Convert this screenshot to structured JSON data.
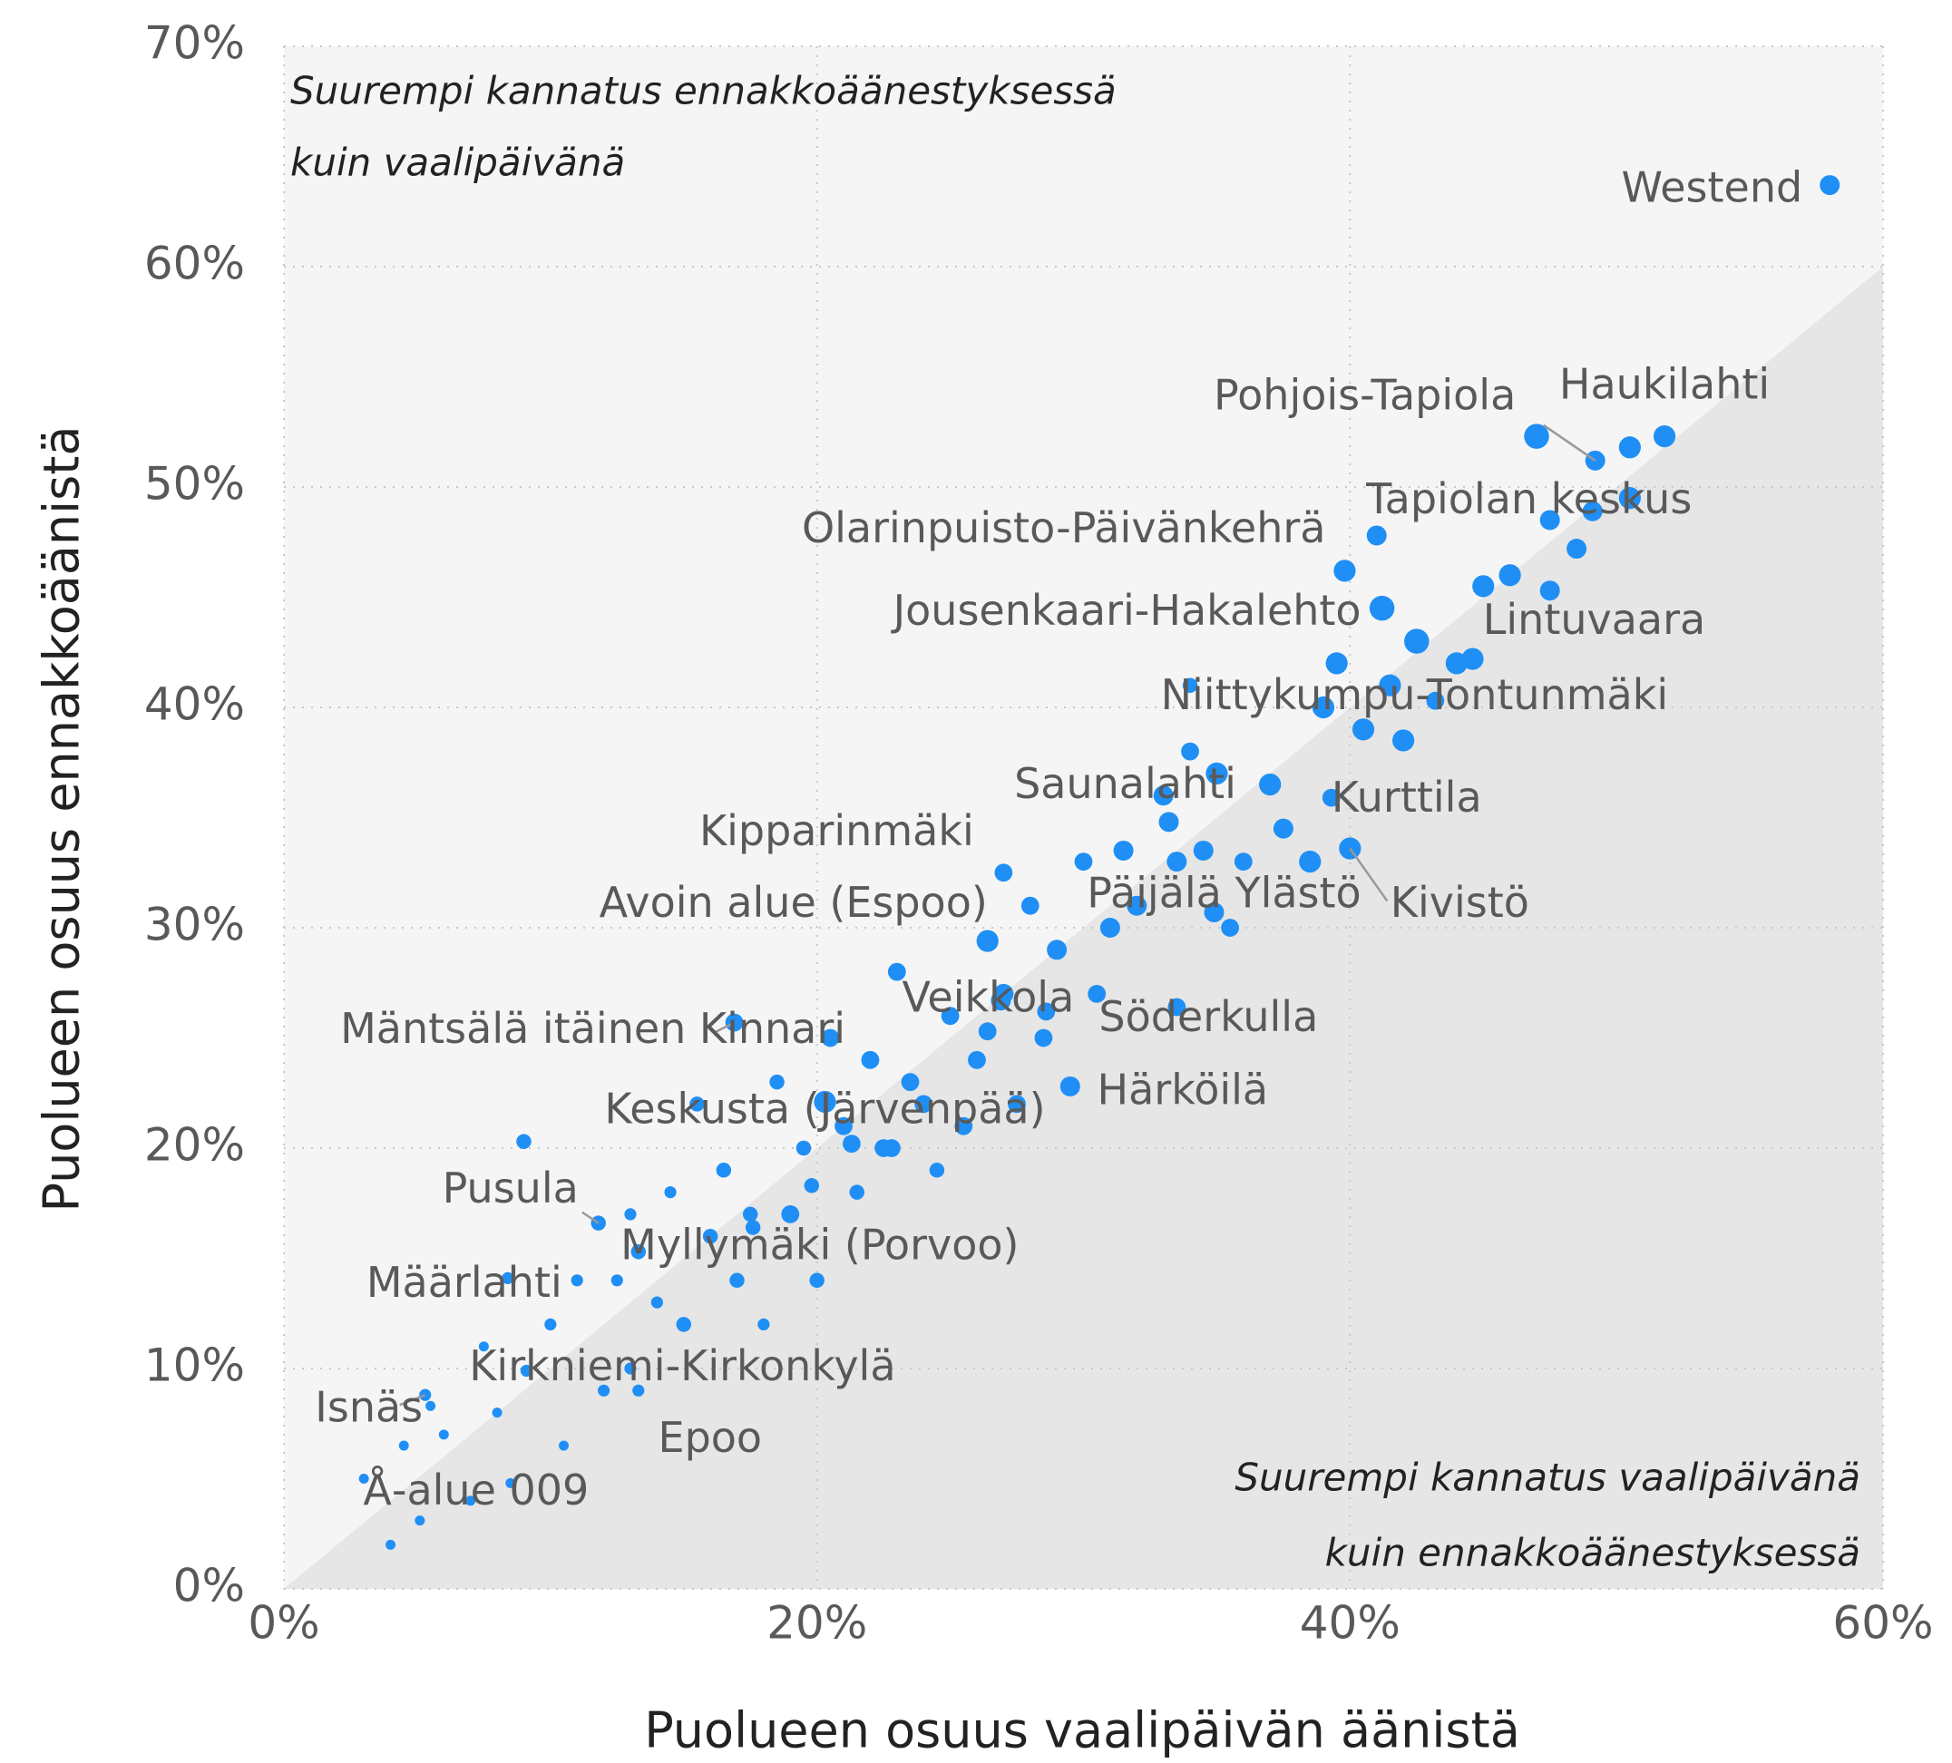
{
  "chart_data": {
    "type": "scatter",
    "x_label": "Puolueen osuus vaalipäivän äänistä",
    "y_label": "Puolueen osuus ennakkoäänistä",
    "annotations": [
      [
        "Suurempi kannatus ennakkoäänestyksessä",
        "kuin vaalipäivänä"
      ],
      [
        "Suurempi kannatus vaalipäivänä",
        "kuin ennakkoäänestyksessä"
      ]
    ],
    "color": "#1f8ff5",
    "xlim": [
      0,
      60
    ],
    "ylim": [
      0,
      70
    ],
    "xticks": [
      {
        "value": 0,
        "label": "0%"
      },
      {
        "value": 20,
        "label": "20%"
      },
      {
        "value": 40,
        "label": "40%"
      },
      {
        "value": 60,
        "label": "60%"
      }
    ],
    "yticks": [
      {
        "value": 0,
        "label": "0%"
      },
      {
        "value": 10,
        "label": "10%"
      },
      {
        "value": 20,
        "label": "20%"
      },
      {
        "value": 30,
        "label": "30%"
      },
      {
        "value": 40,
        "label": "40%"
      },
      {
        "value": 50,
        "label": "50%"
      },
      {
        "value": 60,
        "label": "60%"
      },
      {
        "value": 70,
        "label": "70%"
      }
    ],
    "grid": true,
    "x": [
      58.0,
      51.8,
      49.2,
      49.1,
      39.8,
      41.2,
      44.6,
      43.2,
      39.3,
      40.0,
      33.2,
      27.0,
      26.4,
      34.9,
      26.9,
      33.5,
      16.9,
      29.5,
      20.3,
      11.8,
      13.3,
      8.4,
      9.1,
      5.3,
      13.3,
      5.1,
      3,
      4,
      4.5,
      6,
      7,
      7.5,
      8,
      9,
      10,
      10.5,
      11,
      12,
      12.5,
      13,
      14,
      14.5,
      15,
      15.5,
      16,
      16.5,
      17,
      17.5,
      18,
      18.5,
      19,
      19.5,
      20,
      20.5,
      21,
      21.5,
      22,
      22.5,
      23,
      23.5,
      24,
      24.5,
      25,
      25.5,
      26,
      27,
      27.5,
      28,
      28.5,
      29,
      30,
      30.5,
      31,
      31.5,
      32,
      33,
      33.5,
      34,
      34.5,
      35,
      35.5,
      36,
      37,
      37.5,
      38.5,
      39,
      39.5,
      40.5,
      41.5,
      42,
      42.5,
      44,
      45,
      46,
      47,
      47.5,
      47.5,
      48.5,
      50.5,
      50.5,
      41,
      34,
      17.6,
      19.8,
      21.3,
      22.8,
      26.4,
      28.6,
      13,
      8.5,
      5.5
    ],
    "y": [
      63.7,
      52.3,
      51.2,
      48.9,
      46.2,
      44.5,
      42.2,
      40.3,
      35.9,
      33.6,
      34.8,
      32.5,
      29.4,
      30.7,
      26.7,
      26.4,
      25.7,
      22.8,
      22.1,
      16.6,
      15.3,
      14.1,
      9.9,
      8.8,
      9.0,
      3.1,
      5,
      2,
      6.5,
      7,
      4,
      11,
      8,
      20.3,
      12,
      6.5,
      14,
      9,
      14,
      17,
      13,
      18,
      12,
      22,
      16,
      19,
      14,
      17,
      12,
      23,
      17,
      20,
      14,
      25,
      21,
      18,
      24,
      20,
      28,
      23,
      22,
      19,
      26,
      21,
      24,
      27,
      22,
      31,
      25,
      29,
      33,
      27,
      30,
      33.5,
      31,
      36,
      33,
      38,
      33.5,
      37,
      30,
      33,
      36.5,
      34.5,
      33,
      40,
      42,
      39,
      41,
      38.5,
      43,
      42,
      45.5,
      46,
      52.3,
      48.5,
      45.3,
      47.2,
      51.8,
      49.5,
      47.8,
      41,
      16.4,
      18.3,
      20.2,
      20,
      25.3,
      26.2,
      10,
      4.8,
      8.3
    ],
    "sizes": [
      2,
      2.2,
      2,
      2,
      2.2,
      2.5,
      2.2,
      1.8,
      1.8,
      2.2,
      2,
      1.8,
      2.2,
      2,
      2,
      1.8,
      1.8,
      2,
      2.2,
      1.5,
      1.5,
      1.2,
      1.2,
      1.2,
      1.2,
      1,
      1,
      1,
      1,
      1,
      1,
      1,
      1,
      1.5,
      1.2,
      1,
      1.2,
      1.2,
      1.2,
      1.2,
      1.2,
      1.2,
      1.5,
      1.5,
      1.5,
      1.5,
      1.5,
      1.5,
      1.2,
      1.5,
      1.8,
      1.5,
      1.5,
      1.8,
      1.8,
      1.5,
      1.8,
      1.8,
      1.8,
      1.8,
      1.8,
      1.5,
      1.8,
      1.8,
      1.8,
      2,
      1.8,
      1.8,
      1.8,
      2,
      1.8,
      1.8,
      2,
      2,
      2,
      2,
      2,
      1.8,
      2,
      2.2,
      1.8,
      1.8,
      2.2,
      2,
      2.2,
      2.2,
      2.2,
      2.2,
      2.2,
      2.2,
      2.5,
      2.2,
      2.2,
      2.2,
      2.5,
      2,
      2,
      2,
      2.2,
      2.2,
      2,
      1.5,
      1.5,
      1.5,
      1.8,
      1.8,
      1.8,
      1.8,
      1.2,
      1,
      1
    ],
    "labels": [
      "Westend",
      "Haukilahti",
      "Pohjois-Tapiola",
      "Tapiolan keskus",
      "Olarinpuisto-Päivänkehrä",
      "Jousenkaari-Hakalehto",
      "Lintuvaara",
      "Niittykumpu-Tontunmäki",
      "Kurttila",
      "Kivistö",
      "Saunalahti",
      "Kipparinmäki",
      "Avoin alue (Espoo)",
      "Päijälä Ylästö",
      "Veikkola",
      "Söderkulla",
      "Mäntsälä itäinen Kinnari",
      "Härköilä",
      "Keskusta (Järvenpää)",
      "Pusula",
      "Myllymäki (Porvoo)",
      "Määrlahti",
      "Kirkniemi-Kirkonkylä",
      "Isnäs",
      "Epoo",
      "Å-alue 009",
      null,
      null,
      null,
      null,
      null,
      null,
      null,
      null,
      null,
      null,
      null,
      null,
      null,
      null,
      null,
      null,
      null,
      null,
      null,
      null,
      null,
      null,
      null,
      null,
      null,
      null,
      null,
      null,
      null,
      null,
      null,
      null,
      null,
      null,
      null,
      null,
      null,
      null,
      null,
      null,
      null,
      null,
      null,
      null,
      null,
      null,
      null,
      null,
      null,
      null,
      null,
      null,
      null,
      null,
      null,
      null,
      null,
      null,
      null,
      null,
      null,
      null,
      null,
      null,
      null,
      null,
      null,
      null,
      null,
      null,
      null,
      null,
      null,
      null,
      null,
      null,
      null,
      null,
      null,
      null,
      null,
      null,
      null,
      null,
      null
    ]
  }
}
